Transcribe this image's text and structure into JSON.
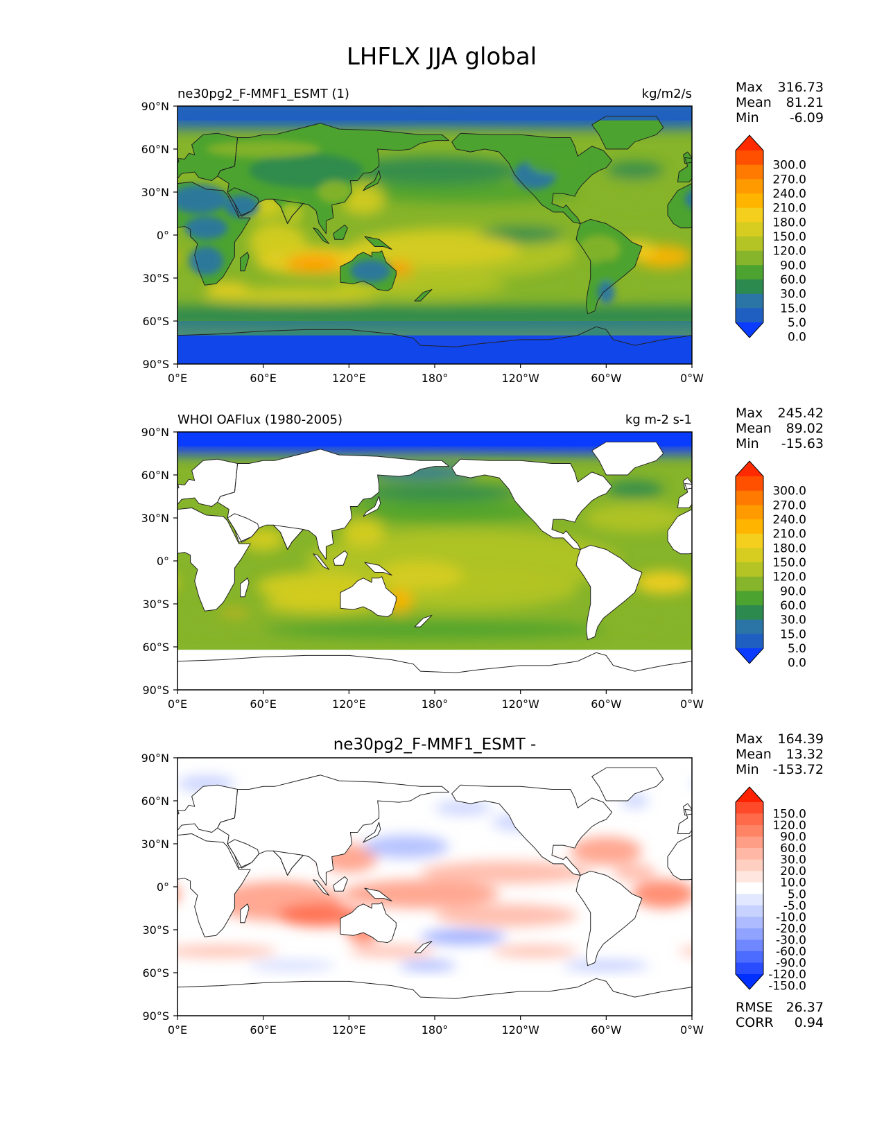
{
  "figure_title": "LHFLX JJA global",
  "colors": {
    "ocean_base": "#1f5fc2",
    "land_base": "#35a033",
    "diff_base": "#ffffff",
    "coast": "#222222"
  },
  "axes": {
    "lat_ticks": [
      "90°N",
      "60°N",
      "30°N",
      "0°",
      "30°S",
      "60°S",
      "90°S"
    ],
    "lon_ticks": [
      "0°E",
      "60°E",
      "120°E",
      "180°",
      "120°W",
      "60°W",
      "0°W"
    ]
  },
  "panels": [
    {
      "id": "model",
      "title_left": "ne30pg2_F-MMF1_ESMT (1)",
      "title_center": "",
      "title_right": "kg/m2/s",
      "stats": [
        {
          "label": "Max",
          "value": "316.73"
        },
        {
          "label": "Mean",
          "value": "81.21"
        },
        {
          "label": "Min",
          "value": "-6.09"
        }
      ],
      "colorbar": {
        "labels": [
          "300.0",
          "270.0",
          "240.0",
          "210.0",
          "180.0",
          "150.0",
          "120.0",
          "90.0",
          "60.0",
          "30.0",
          "15.0",
          "5.0",
          "0.0"
        ],
        "colors": [
          "#ff2a00",
          "#ff5000",
          "#ff7a00",
          "#ff9a00",
          "#ffb400",
          "#f5cf1e",
          "#d7cd20",
          "#b3c424",
          "#86b42a",
          "#4ca32f",
          "#2d8a4f",
          "#2a74a6",
          "#1f5fc2",
          "#0a3cff"
        ]
      },
      "field": "model"
    },
    {
      "id": "obs",
      "title_left": "WHOI OAFlux (1980-2005)",
      "title_center": "",
      "title_right": "kg m-2 s-1",
      "stats": [
        {
          "label": "Max",
          "value": "245.42"
        },
        {
          "label": "Mean",
          "value": "89.02"
        },
        {
          "label": "Min",
          "value": "-15.63"
        }
      ],
      "colorbar": {
        "labels": [
          "300.0",
          "270.0",
          "240.0",
          "210.0",
          "180.0",
          "150.0",
          "120.0",
          "90.0",
          "60.0",
          "30.0",
          "15.0",
          "5.0",
          "0.0"
        ],
        "colors": [
          "#ff2a00",
          "#ff5000",
          "#ff7a00",
          "#ff9a00",
          "#ffb400",
          "#f5cf1e",
          "#d7cd20",
          "#b3c424",
          "#86b42a",
          "#4ca32f",
          "#2d8a4f",
          "#2a74a6",
          "#1f5fc2",
          "#0a3cff"
        ]
      },
      "field": "obs"
    },
    {
      "id": "diff",
      "title_left": "",
      "title_center": "ne30pg2_F-MMF1_ESMT -",
      "title_right": "",
      "stats": [
        {
          "label": "Max",
          "value": "164.39"
        },
        {
          "label": "Mean",
          "value": "13.32"
        },
        {
          "label": "Min",
          "value": "-153.72"
        }
      ],
      "colorbar": {
        "labels": [
          "150.0",
          "120.0",
          "90.0",
          "60.0",
          "30.0",
          "20.0",
          "10.0",
          "5.0",
          "-5.0",
          "-10.0",
          "-20.0",
          "-30.0",
          "-60.0",
          "-90.0",
          "-120.0",
          "-150.0"
        ],
        "colors": [
          "#ff2200",
          "#ff4a2a",
          "#ff6a4a",
          "#ff8466",
          "#ff9e86",
          "#ffb8a6",
          "#ffd0c2",
          "#ffe6de",
          "#ffffff",
          "#e2e8ff",
          "#c8d2ff",
          "#aebcff",
          "#90a4ff",
          "#7088ff",
          "#4c6cff",
          "#2a4cff",
          "#0030ff"
        ]
      },
      "field": "diff",
      "extra_stats": [
        {
          "label": "RMSE",
          "value": "26.37"
        },
        {
          "label": "CORR",
          "value": "0.94"
        }
      ]
    }
  ]
}
